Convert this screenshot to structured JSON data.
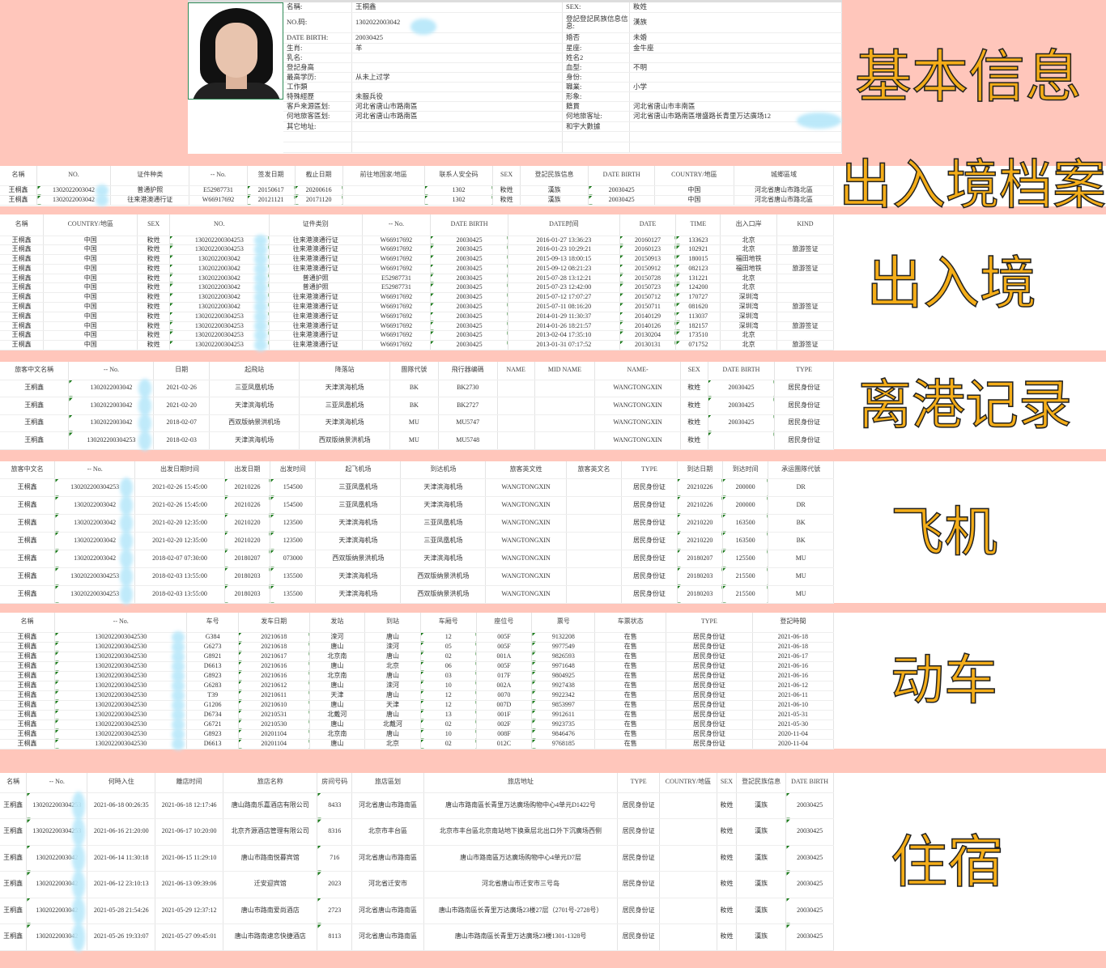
{
  "labels": {
    "basic": "基本信息",
    "archive": "出入境档案",
    "entry_exit": "出入境",
    "departure": "离港记录",
    "flight": "飞机",
    "train": "动车",
    "hotel": "住宿"
  },
  "colors": {
    "background": "#ffc6bb",
    "label": "#f4ad18",
    "blur": "#b9e8fa"
  },
  "basic_info": [
    [
      "名稱:",
      "王桐鑫",
      "SEX:",
      "籹姓"
    ],
    [
      "NO.码:",
      "1302022003042",
      "登記登記民族信息信息:",
      "漢族"
    ],
    [
      "DATE BIRTH:",
      "20030425",
      "婚否",
      "未婚"
    ],
    [
      "生肖:",
      "羊",
      "星座:",
      "金牛座"
    ],
    [
      "乳名:",
      "",
      "姓名2",
      ""
    ],
    [
      "登記身高",
      "",
      "血型:",
      "不明"
    ],
    [
      "最高学历:",
      "从未上过学",
      "身份:",
      ""
    ],
    [
      "工作類",
      "",
      "職業:",
      "小学"
    ],
    [
      "特殊經歷",
      "未服兵役",
      "形象:",
      ""
    ],
    [
      "客戶来源區划:",
      "河北省唐山市路南區",
      "籍貫",
      "河北省唐山市丰南區"
    ],
    [
      "何地旅客區划:",
      "河北省唐山市路南區",
      "何地旅客址:",
      "河北省唐山市路南區增盛路长青里万达廣场12"
    ],
    [
      "其它地址:",
      "",
      "和宇大數據",
      ""
    ],
    [
      "",
      "",
      "",
      ""
    ],
    [
      "",
      "",
      "",
      ""
    ]
  ],
  "archive": {
    "headers": [
      "名稱",
      "NO.",
      "证件种类",
      "-- No.",
      "签发日期",
      "截止日期",
      "前往地国家/地區",
      "联系人安全码",
      "SEX",
      "登記民族信息",
      "DATE BIRTH",
      "COUNTRY/地區",
      "城郷區域"
    ],
    "rows": [
      [
        "王桐鑫",
        "1302022003042",
        "普通护照",
        "E52987731",
        "20150617",
        "20200616",
        "",
        "1302",
        "籹姓",
        "漢族",
        "20030425",
        "中国",
        "河北省唐山市路北區"
      ],
      [
        "王桐鑫",
        "1302022003042",
        "往来港澳通行证",
        "W66917692",
        "20121121",
        "20171120",
        "",
        "1302",
        "籹姓",
        "漢族",
        "20030425",
        "中国",
        "河北省唐山市路北區"
      ]
    ]
  },
  "entry_exit": {
    "headers": [
      "名稱",
      "COUNTRY/地區",
      "SEX",
      "NO.",
      "证件类别",
      "-- No.",
      "DATE BIRTH",
      "DATE时间",
      "DATE",
      "TIME",
      "出入口岸",
      "KIND"
    ],
    "rows": [
      [
        "王桐鑫",
        "中国",
        "籹姓",
        "130202200304253",
        "往来港澳通行证",
        "W66917692",
        "20030425",
        "2016-01-27 13:36:23",
        "20160127",
        "133623",
        "北京",
        ""
      ],
      [
        "王桐鑫",
        "中国",
        "籹姓",
        "130202200304253",
        "往来港澳通行证",
        "W66917692",
        "20030425",
        "2016-01-23 10:29:21",
        "20160123",
        "102921",
        "北京",
        "旅游签证"
      ],
      [
        "王桐鑫",
        "中国",
        "籹姓",
        "1302022003042",
        "往来港澳通行证",
        "W66917692",
        "20030425",
        "2015-09-13 18:00:15",
        "20150913",
        "180015",
        "福田地铁",
        ""
      ],
      [
        "王桐鑫",
        "中国",
        "籹姓",
        "1302022003042",
        "往来港澳通行证",
        "W66917692",
        "20030425",
        "2015-09-12 08:21:23",
        "20150912",
        "082123",
        "福田地铁",
        "旅游签证"
      ],
      [
        "王桐鑫",
        "中国",
        "籹姓",
        "1302022003042",
        "普通护照",
        "E52987731",
        "20030425",
        "2015-07-28 13:12:21",
        "20150728",
        "131221",
        "北京",
        ""
      ],
      [
        "王桐鑫",
        "中国",
        "籹姓",
        "1302022003042",
        "普通护照",
        "E52987731",
        "20030425",
        "2015-07-23 12:42:00",
        "20150723",
        "124200",
        "北京",
        ""
      ],
      [
        "王桐鑫",
        "中国",
        "籹姓",
        "1302022003042",
        "往来港澳通行证",
        "W66917692",
        "20030425",
        "2015-07-12 17:07:27",
        "20150712",
        "170727",
        "深圳湾",
        ""
      ],
      [
        "王桐鑫",
        "中国",
        "籹姓",
        "1302022003042",
        "往来港澳通行证",
        "W66917692",
        "20030425",
        "2015-07-11 08:16:20",
        "20150711",
        "081620",
        "深圳湾",
        "旅游签证"
      ],
      [
        "王桐鑫",
        "中国",
        "籹姓",
        "130202200304253",
        "往来港澳通行证",
        "W66917692",
        "20030425",
        "2014-01-29 11:30:37",
        "20140129",
        "113037",
        "深圳湾",
        ""
      ],
      [
        "王桐鑫",
        "中国",
        "籹姓",
        "130202200304253",
        "往来港澳通行证",
        "W66917692",
        "20030425",
        "2014-01-26 18:21:57",
        "20140126",
        "182157",
        "深圳湾",
        "旅游签证"
      ],
      [
        "王桐鑫",
        "中国",
        "籹姓",
        "130202200304253",
        "往来港澳通行证",
        "W66917692",
        "20030425",
        "2013-02-04 17:35:10",
        "20130204",
        "173510",
        "北京",
        ""
      ],
      [
        "王桐鑫",
        "中国",
        "籹姓",
        "130202200304253",
        "往来港澳通行证",
        "W66917692",
        "20030425",
        "2013-01-31 07:17:52",
        "20130131",
        "071752",
        "北京",
        "旅游签证"
      ]
    ]
  },
  "departure": {
    "headers": [
      "旅客中文名稱",
      "-- No.",
      "日期",
      "起飛站",
      "降落站",
      "團隊代號",
      "飛行器编碼",
      "NAME",
      "MID NAME",
      "NAME-",
      "SEX",
      "DATE BIRTH",
      "TYPE"
    ],
    "rows": [
      [
        "王桐鑫",
        "1302022003042",
        "2021-02-26",
        "三亚凤凰机场",
        "天津滨海机场",
        "BK",
        "BK2730",
        "",
        "",
        "WANGTONGXIN",
        "籹姓",
        "20030425",
        "居民身份证"
      ],
      [
        "王桐鑫",
        "1302022003042",
        "2021-02-20",
        "天津滨海机场",
        "三亚凤凰机场",
        "BK",
        "BK2727",
        "",
        "",
        "WANGTONGXIN",
        "籹姓",
        "20030425",
        "居民身份证"
      ],
      [
        "王桐鑫",
        "1302022003042",
        "2018-02-07",
        "西双版纳景洪机场",
        "天津滨海机场",
        "MU",
        "MU5747",
        "",
        "",
        "WANGTONGXIN",
        "籹姓",
        "20030425",
        "居民身份证"
      ],
      [
        "王桐鑫",
        "130202200304253",
        "2018-02-03",
        "天津滨海机场",
        "西双版纳景洪机场",
        "MU",
        "MU5748",
        "",
        "",
        "WANGTONGXIN",
        "籹姓",
        "",
        "居民身份证"
      ]
    ]
  },
  "flight": {
    "headers": [
      "旅客中文名",
      "-- No.",
      "出发日期时间",
      "出发日期",
      "出发时间",
      "起飞机场",
      "到达机场",
      "旅客英文姓",
      "旅客英文名",
      "TYPE",
      "到达日期",
      "到达时间",
      "承运團隊代號"
    ],
    "rows": [
      [
        "王桐鑫",
        "130202200304253",
        "2021-02-26 15:45:00",
        "20210226",
        "154500",
        "三亚凤凰机场",
        "天津滨海机场",
        "WANGTONGXIN",
        "",
        "居民身份证",
        "20210226",
        "200000",
        "DR"
      ],
      [
        "王桐鑫",
        "1302022003042",
        "2021-02-26 15:45:00",
        "20210226",
        "154500",
        "三亚凤凰机场",
        "天津滨海机场",
        "WANGTONGXIN",
        "",
        "居民身份证",
        "20210226",
        "200000",
        "DR"
      ],
      [
        "王桐鑫",
        "1302022003042",
        "2021-02-20 12:35:00",
        "20210220",
        "123500",
        "天津滨海机场",
        "三亚凤凰机场",
        "WANGTONGXIN",
        "",
        "居民身份证",
        "20210220",
        "163500",
        "BK"
      ],
      [
        "王桐鑫",
        "1302022003042",
        "2021-02-20 12:35:00",
        "20210220",
        "123500",
        "天津滨海机场",
        "三亚凤凰机场",
        "WANGTONGXIN",
        "",
        "居民身份证",
        "20210220",
        "163500",
        "BK"
      ],
      [
        "王桐鑫",
        "1302022003042",
        "2018-02-07 07:30:00",
        "20180207",
        "073000",
        "西双版纳景洪机场",
        "天津滨海机场",
        "WANGTONGXIN",
        "",
        "居民身份证",
        "20180207",
        "125500",
        "MU"
      ],
      [
        "王桐鑫",
        "130202200304253",
        "2018-02-03 13:55:00",
        "20180203",
        "135500",
        "天津滨海机场",
        "西双版纳景洪机场",
        "WANGTONGXIN",
        "",
        "居民身份证",
        "20180203",
        "215500",
        "MU"
      ],
      [
        "王桐鑫",
        "130202200304253",
        "2018-02-03 13:55:00",
        "20180203",
        "135500",
        "天津滨海机场",
        "西双版纳景洪机场",
        "WANGTONGXIN",
        "",
        "居民身份证",
        "20180203",
        "215500",
        "MU"
      ]
    ]
  },
  "train": {
    "headers": [
      "名稱",
      "-- No.",
      "车号",
      "发车日期",
      "发站",
      "到站",
      "车厢号",
      "座位号",
      "票号",
      "车票状态",
      "TYPE",
      "登記時間"
    ],
    "rows": [
      [
        "王桐鑫",
        "1302022003042530",
        "G384",
        "20210618",
        "滦河",
        "唐山",
        "12",
        "005F",
        "9132208",
        "在售",
        "居民身份证",
        "2021-06-18"
      ],
      [
        "王桐鑫",
        "1302022003042530",
        "G6273",
        "20210618",
        "唐山",
        "滦河",
        "05",
        "005F",
        "9977549",
        "在售",
        "居民身份证",
        "2021-06-18"
      ],
      [
        "王桐鑫",
        "1302022003042530",
        "G8921",
        "20210617",
        "北京南",
        "唐山",
        "02",
        "001A",
        "9826593",
        "在售",
        "居民身份证",
        "2021-06-17"
      ],
      [
        "王桐鑫",
        "1302022003042530",
        "D6613",
        "20210616",
        "唐山",
        "北京",
        "06",
        "005F",
        "9971648",
        "在售",
        "居民身份证",
        "2021-06-16"
      ],
      [
        "王桐鑫",
        "1302022003042530",
        "G8923",
        "20210616",
        "北京南",
        "唐山",
        "03",
        "017F",
        "9804925",
        "在售",
        "居民身份证",
        "2021-06-16"
      ],
      [
        "王桐鑫",
        "1302022003042530",
        "G6283",
        "20210612",
        "唐山",
        "滦河",
        "10",
        "002A",
        "9927438",
        "在售",
        "居民身份证",
        "2021-06-12"
      ],
      [
        "王桐鑫",
        "1302022003042530",
        "T39",
        "20210611",
        "天津",
        "唐山",
        "12",
        "0070",
        "9922342",
        "在售",
        "居民身份证",
        "2021-06-11"
      ],
      [
        "王桐鑫",
        "1302022003042530",
        "G1206",
        "20210610",
        "唐山",
        "天津",
        "12",
        "007D",
        "9853997",
        "在售",
        "居民身份证",
        "2021-06-10"
      ],
      [
        "王桐鑫",
        "1302022003042530",
        "D6734",
        "20210531",
        "北戴河",
        "唐山",
        "13",
        "001F",
        "9912611",
        "在售",
        "居民身份证",
        "2021-05-31"
      ],
      [
        "王桐鑫",
        "1302022003042530",
        "G6721",
        "20210530",
        "唐山",
        "北戴河",
        "02",
        "002F",
        "9923735",
        "在售",
        "居民身份证",
        "2021-05-30"
      ],
      [
        "王桐鑫",
        "1302022003042530",
        "G8923",
        "20201104",
        "北京南",
        "唐山",
        "10",
        "008F",
        "9846476",
        "在售",
        "居民身份证",
        "2020-11-04"
      ],
      [
        "王桐鑫",
        "1302022003042530",
        "D6613",
        "20201104",
        "唐山",
        "北京",
        "02",
        "012C",
        "9768185",
        "在售",
        "居民身份证",
        "2020-11-04"
      ]
    ]
  },
  "hotel": {
    "headers": [
      "名稱",
      "-- No.",
      "何時入住",
      "離店时间",
      "旅店名称",
      "房间号码",
      "旅店區划",
      "旅店地址",
      "TYPE",
      "COUNTRY/地區",
      "SEX",
      "登記民族信息",
      "DATE BIRTH"
    ],
    "rows": [
      [
        "王桐鑫",
        "130202200304253",
        "2021-06-18 00:26:35",
        "2021-06-18 12:17:46",
        "唐山路南乐嘉酒店有限公司",
        "8433",
        "河北省唐山市路南區",
        "唐山市路南區长青里万达廣场购物中心4单元D1422号",
        "居民身份证",
        "",
        "籹姓",
        "漢族",
        "20030425"
      ],
      [
        "王桐鑫",
        "130202200304253",
        "2021-06-16 21:20:00",
        "2021-06-17 10:20:00",
        "北京齐源酒店管理有限公司",
        "8316",
        "北京市丰台區",
        "北京市丰台區北京南站地下换乘层北出口外下沉廣场西侧",
        "居民身份证",
        "",
        "籹姓",
        "漢族",
        "20030425"
      ],
      [
        "王桐鑫",
        "1302022003042",
        "2021-06-14 11:30:18",
        "2021-06-15 11:29:10",
        "唐山市路南悦暮宾馆",
        "716",
        "河北省唐山市路南區",
        "唐山市路南區万达廣场购物中心4单元D7层",
        "居民身份证",
        "",
        "籹姓",
        "漢族",
        "20030425"
      ],
      [
        "王桐鑫",
        "1302022003042",
        "2021-06-12 23:10:13",
        "2021-06-13 09:39:06",
        "迁安迎宾馆",
        "2023",
        "河北省迁安市",
        "河北省唐山市迁安市三号岛",
        "居民身份证",
        "",
        "籹姓",
        "漢族",
        "20030425"
      ],
      [
        "王桐鑫",
        "1302022003042",
        "2021-05-28 21:54:26",
        "2021-05-29 12:37:12",
        "唐山市路南爱尚酒店",
        "2723",
        "河北省唐山市路南區",
        "唐山市路南區长青里万达廣场23楼27层（2701号-2728号）",
        "居民身份证",
        "",
        "籹姓",
        "漢族",
        "20030425"
      ],
      [
        "王桐鑫",
        "1302022003042",
        "2021-05-26 19:33:07",
        "2021-05-27 09:45:01",
        "唐山市路南速恋快捷酒店",
        "8113",
        "河北省唐山市路南區",
        "唐山市路南區长青里万达廣场23楼1301-1328号",
        "居民身份证",
        "",
        "籹姓",
        "漢族",
        "20030425"
      ]
    ]
  }
}
